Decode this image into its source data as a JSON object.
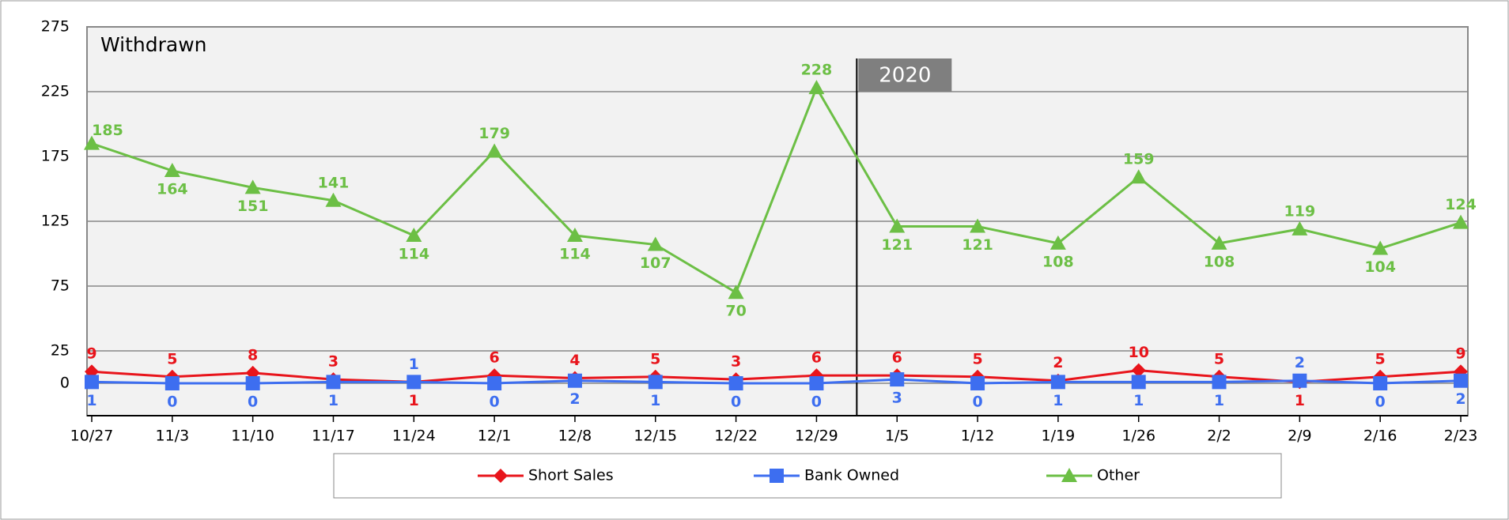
{
  "chart_data": {
    "type": "line",
    "title": "Withdrawn",
    "categories": [
      "10/27",
      "11/3",
      "11/10",
      "11/17",
      "11/24",
      "12/1",
      "12/8",
      "12/15",
      "12/22",
      "12/29",
      "1/5",
      "1/12",
      "1/19",
      "1/26",
      "2/2",
      "2/9",
      "2/16",
      "2/23"
    ],
    "series": [
      {
        "name": "Short Sales",
        "color": "#e8141b",
        "marker": "diamond",
        "values": [
          9,
          5,
          8,
          3,
          1,
          6,
          4,
          5,
          3,
          6,
          6,
          5,
          2,
          10,
          5,
          1,
          5,
          9
        ]
      },
      {
        "name": "Bank Owned",
        "color": "#3d6ef0",
        "marker": "square",
        "values": [
          1,
          0,
          0,
          1,
          1,
          0,
          2,
          1,
          0,
          0,
          3,
          0,
          1,
          1,
          1,
          2,
          0,
          2
        ]
      },
      {
        "name": "Other",
        "color": "#6cbf45",
        "marker": "triangle",
        "values": [
          185,
          164,
          151,
          141,
          114,
          179,
          114,
          107,
          70,
          228,
          121,
          121,
          108,
          159,
          108,
          119,
          104,
          124
        ]
      }
    ],
    "annotation": "2020",
    "ylim": [
      -25,
      275
    ],
    "yticks": [
      0,
      25,
      75,
      125,
      175,
      225,
      275
    ],
    "grid": true,
    "legend": "bottom"
  }
}
